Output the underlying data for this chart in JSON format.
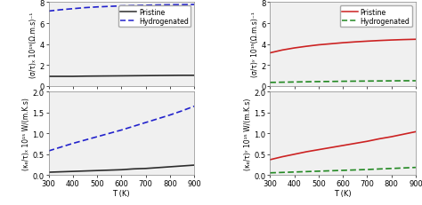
{
  "T": [
    300,
    350,
    400,
    450,
    500,
    550,
    600,
    650,
    700,
    750,
    800,
    850,
    900
  ],
  "left_top": {
    "pristine": [
      0.9,
      0.9,
      0.9,
      0.92,
      0.93,
      0.94,
      0.95,
      0.96,
      0.97,
      0.98,
      0.99,
      1.0,
      1.0
    ],
    "hydrogenated": [
      7.15,
      7.28,
      7.38,
      7.48,
      7.55,
      7.6,
      7.65,
      7.68,
      7.71,
      7.74,
      7.76,
      7.77,
      7.78
    ],
    "ylim": [
      0,
      8
    ],
    "yticks": [
      0,
      2,
      4,
      6,
      8
    ],
    "ylabel": "(σ/τ)ₓ 10¹⁹(Ω.m.s)⁻¹",
    "pristine_color": "#2c2c2c",
    "hydro_color": "#2222cc",
    "pristine_lw": 1.2,
    "hydro_lw": 1.2
  },
  "left_bottom": {
    "pristine": [
      0.07,
      0.08,
      0.09,
      0.1,
      0.11,
      0.12,
      0.13,
      0.15,
      0.16,
      0.18,
      0.2,
      0.22,
      0.24
    ],
    "hydrogenated": [
      0.58,
      0.67,
      0.76,
      0.84,
      0.92,
      1.0,
      1.08,
      1.17,
      1.26,
      1.35,
      1.44,
      1.54,
      1.65
    ],
    "ylim": [
      0,
      2.0
    ],
    "yticks": [
      0.0,
      0.5,
      1.0,
      1.5,
      2.0
    ],
    "ylabel": "(κₑ/τ)ₓ 10¹⁵ W/(m.K.s)",
    "pristine_color": "#2c2c2c",
    "hydro_color": "#2222cc",
    "pristine_lw": 1.2,
    "hydro_lw": 1.2
  },
  "right_top": {
    "pristine": [
      3.15,
      3.42,
      3.62,
      3.78,
      3.92,
      4.02,
      4.12,
      4.2,
      4.27,
      4.33,
      4.38,
      4.42,
      4.45
    ],
    "hydrogenated": [
      0.32,
      0.34,
      0.36,
      0.38,
      0.4,
      0.41,
      0.43,
      0.44,
      0.45,
      0.46,
      0.47,
      0.48,
      0.48
    ],
    "ylim": [
      0,
      8
    ],
    "yticks": [
      0,
      2,
      4,
      6,
      8
    ],
    "ylabel": "(σ/τ)ʸ 10¹⁹(Ω.m.s)⁻¹",
    "pristine_color": "#cc2222",
    "hydro_color": "#228822",
    "pristine_lw": 1.2,
    "hydro_lw": 1.2
  },
  "right_bottom": {
    "pristine": [
      0.37,
      0.44,
      0.5,
      0.56,
      0.61,
      0.66,
      0.71,
      0.76,
      0.81,
      0.87,
      0.92,
      0.98,
      1.04
    ],
    "hydrogenated": [
      0.055,
      0.065,
      0.075,
      0.085,
      0.095,
      0.105,
      0.115,
      0.125,
      0.135,
      0.148,
      0.16,
      0.172,
      0.185
    ],
    "ylim": [
      0,
      2.0
    ],
    "yticks": [
      0.0,
      0.5,
      1.0,
      1.5,
      2.0
    ],
    "ylabel": "(κₑ/τ)ʸ 10¹⁵ W/(m.K.s)",
    "pristine_color": "#cc2222",
    "hydro_color": "#228822",
    "pristine_lw": 1.2,
    "hydro_lw": 1.2
  },
  "xlabel": "T (K)",
  "xlim": [
    300,
    900
  ],
  "xticks": [
    300,
    400,
    500,
    600,
    700,
    800,
    900
  ],
  "legend_left": {
    "pristine_label": "Pristine",
    "hydro_label": "Hydrogenated",
    "pristine_color": "#2c2c2c",
    "hydro_color": "#2222cc"
  },
  "legend_right": {
    "pristine_label": "Pristine",
    "hydro_label": "Hydrogenated",
    "pristine_color": "#cc2222",
    "hydro_color": "#228822"
  },
  "bg_color": "#f0f0f0",
  "fontsize": 6.0
}
